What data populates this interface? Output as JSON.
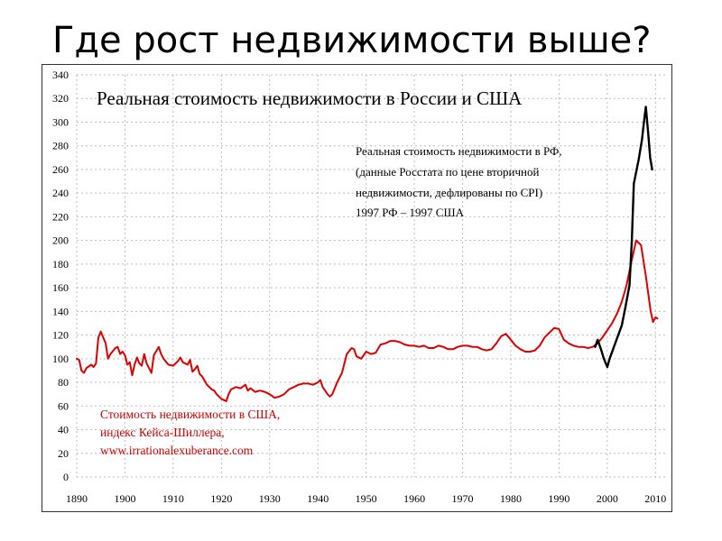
{
  "slide": {
    "title": "Где рост недвижимости выше?"
  },
  "chart_data": {
    "type": "line",
    "title": "Реальная стоимость недвижимости в России  и США",
    "xlabel": "",
    "ylabel": "",
    "xlim": [
      1890,
      2012
    ],
    "ylim": [
      0,
      340
    ],
    "x_ticks": [
      1890,
      1900,
      1910,
      1920,
      1930,
      1940,
      1950,
      1960,
      1970,
      1980,
      1990,
      2000,
      2010
    ],
    "y_ticks": [
      0,
      20,
      40,
      60,
      80,
      100,
      120,
      140,
      160,
      180,
      200,
      220,
      240,
      260,
      280,
      300,
      320,
      340
    ],
    "grid": true,
    "series": [
      {
        "name": "Стоимость недвижимости в США, индекс Кейса-Шиллера",
        "color": "#dd0000",
        "label_lines": [
          "Стоимость недвижимости в США,",
          "индекс Кейса-Шиллера,",
          "www.irrationalexuberance.com"
        ],
        "points": [
          [
            1890,
            100
          ],
          [
            1890.5,
            99
          ],
          [
            1891,
            90
          ],
          [
            1891.5,
            88
          ],
          [
            1892,
            92
          ],
          [
            1893,
            95
          ],
          [
            1893.5,
            93
          ],
          [
            1894,
            96
          ],
          [
            1894.5,
            118
          ],
          [
            1895,
            123
          ],
          [
            1895.5,
            118
          ],
          [
            1896,
            113
          ],
          [
            1896.5,
            100
          ],
          [
            1897,
            104
          ],
          [
            1898,
            109
          ],
          [
            1898.5,
            110
          ],
          [
            1899,
            104
          ],
          [
            1899.5,
            106
          ],
          [
            1900,
            103
          ],
          [
            1900.5,
            95
          ],
          [
            1901,
            97
          ],
          [
            1901.5,
            86
          ],
          [
            1902,
            95
          ],
          [
            1902.5,
            101
          ],
          [
            1903,
            96
          ],
          [
            1903.5,
            94
          ],
          [
            1904,
            104
          ],
          [
            1904.5,
            96
          ],
          [
            1905,
            92
          ],
          [
            1905.5,
            88
          ],
          [
            1906,
            103
          ],
          [
            1907,
            110
          ],
          [
            1907.5,
            104
          ],
          [
            1908,
            100
          ],
          [
            1909,
            95
          ],
          [
            1910,
            94
          ],
          [
            1911,
            98
          ],
          [
            1911.5,
            101
          ],
          [
            1912,
            97
          ],
          [
            1913,
            95
          ],
          [
            1913.5,
            99
          ],
          [
            1914,
            89
          ],
          [
            1914.5,
            91
          ],
          [
            1915,
            94
          ],
          [
            1915.5,
            87
          ],
          [
            1916,
            85
          ],
          [
            1917,
            78
          ],
          [
            1918,
            74
          ],
          [
            1918.5,
            73
          ],
          [
            1919,
            70
          ],
          [
            1920,
            66
          ],
          [
            1920.5,
            65
          ],
          [
            1921,
            64
          ],
          [
            1921.5,
            70
          ],
          [
            1922,
            74
          ],
          [
            1923,
            76
          ],
          [
            1924,
            75
          ],
          [
            1925,
            78
          ],
          [
            1925.5,
            73
          ],
          [
            1926,
            75
          ],
          [
            1927,
            72
          ],
          [
            1928,
            73
          ],
          [
            1929,
            72
          ],
          [
            1930,
            70
          ],
          [
            1931,
            67
          ],
          [
            1932,
            68
          ],
          [
            1933,
            70
          ],
          [
            1934,
            74
          ],
          [
            1935,
            76
          ],
          [
            1936,
            78
          ],
          [
            1937,
            79
          ],
          [
            1938,
            79
          ],
          [
            1939,
            78
          ],
          [
            1940,
            80
          ],
          [
            1940.5,
            82
          ],
          [
            1941,
            76
          ],
          [
            1942,
            70
          ],
          [
            1942.5,
            68
          ],
          [
            1943,
            70
          ],
          [
            1944,
            80
          ],
          [
            1945,
            88
          ],
          [
            1946,
            104
          ],
          [
            1947,
            109
          ],
          [
            1947.5,
            108
          ],
          [
            1948,
            102
          ],
          [
            1949,
            100
          ],
          [
            1950,
            106
          ],
          [
            1951,
            104
          ],
          [
            1952,
            105
          ],
          [
            1953,
            112
          ],
          [
            1954,
            113
          ],
          [
            1955,
            115
          ],
          [
            1956,
            115
          ],
          [
            1957,
            114
          ],
          [
            1958,
            112
          ],
          [
            1959,
            111
          ],
          [
            1960,
            111
          ],
          [
            1961,
            110
          ],
          [
            1962,
            111
          ],
          [
            1963,
            109
          ],
          [
            1964,
            109
          ],
          [
            1965,
            111
          ],
          [
            1966,
            110
          ],
          [
            1967,
            108
          ],
          [
            1968,
            108
          ],
          [
            1969,
            110
          ],
          [
            1970,
            111
          ],
          [
            1971,
            111
          ],
          [
            1972,
            110
          ],
          [
            1973,
            110
          ],
          [
            1974,
            108
          ],
          [
            1975,
            107
          ],
          [
            1976,
            108
          ],
          [
            1977,
            113
          ],
          [
            1978,
            119
          ],
          [
            1979,
            121
          ],
          [
            1980,
            116
          ],
          [
            1981,
            111
          ],
          [
            1982,
            108
          ],
          [
            1983,
            106
          ],
          [
            1984,
            106
          ],
          [
            1985,
            107
          ],
          [
            1986,
            111
          ],
          [
            1987,
            118
          ],
          [
            1988,
            122
          ],
          [
            1989,
            126
          ],
          [
            1990,
            125
          ],
          [
            1991,
            116
          ],
          [
            1992,
            113
          ],
          [
            1993,
            111
          ],
          [
            1994,
            110
          ],
          [
            1995,
            110
          ],
          [
            1996,
            109
          ],
          [
            1997,
            110
          ],
          [
            1998,
            113
          ],
          [
            1999,
            118
          ],
          [
            2000,
            124
          ],
          [
            2001,
            130
          ],
          [
            2002,
            138
          ],
          [
            2003,
            148
          ],
          [
            2004,
            162
          ],
          [
            2005,
            182
          ],
          [
            2006,
            200
          ],
          [
            2007,
            196
          ],
          [
            2008,
            170
          ],
          [
            2009,
            140
          ],
          [
            2009.5,
            131
          ],
          [
            2010,
            135
          ],
          [
            2010.4,
            134
          ]
        ]
      },
      {
        "name": "Реальная стоимость недвижимости в РФ",
        "color": "#000000",
        "label_lines": [
          "Реальная стоимость недвижимости в РФ,",
          "(данные Росстата по цене вторичной",
          "недвижимости, дефлированы по CPI)",
          "1997  РФ – 1997 США"
        ],
        "points": [
          [
            1997.5,
            110
          ],
          [
            1998,
            116
          ],
          [
            1998.7,
            108
          ],
          [
            1999.3,
            100
          ],
          [
            2000,
            93
          ],
          [
            2000.5,
            100
          ],
          [
            2001.2,
            108
          ],
          [
            2002,
            117
          ],
          [
            2003,
            128
          ],
          [
            2003.7,
            142
          ],
          [
            2004.6,
            162
          ],
          [
            2005.1,
            200
          ],
          [
            2005.5,
            248
          ],
          [
            2006.5,
            268
          ],
          [
            2007.2,
            285
          ],
          [
            2007.6,
            300
          ],
          [
            2008,
            313
          ],
          [
            2008.5,
            290
          ],
          [
            2008.9,
            270
          ],
          [
            2009.3,
            260
          ]
        ]
      }
    ]
  }
}
